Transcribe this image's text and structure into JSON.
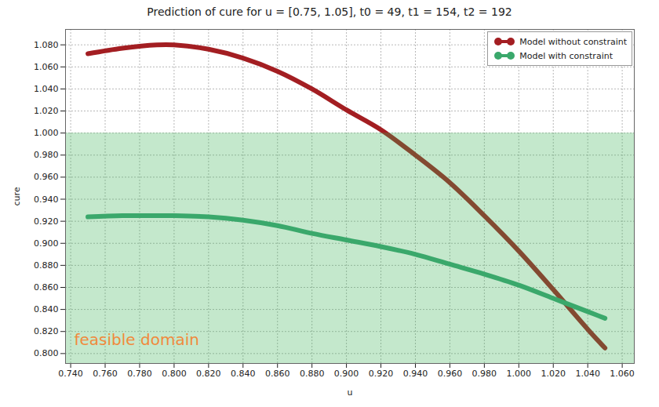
{
  "chart_data": {
    "type": "line",
    "title": "Prediction of cure for u = [0.75, 1.05], t0 = 49, t1 = 154, t2 = 192",
    "x_label": "u",
    "y_label": "cure",
    "x": [
      0.75,
      0.77,
      0.79,
      0.8,
      0.82,
      0.84,
      0.86,
      0.88,
      0.9,
      0.92,
      0.94,
      0.96,
      0.98,
      1.0,
      1.02,
      1.04,
      1.05
    ],
    "series": [
      {
        "name": "Model without constraint",
        "color": "#a31e22",
        "marker": "circle",
        "values": [
          1.072,
          1.077,
          1.08,
          1.08,
          1.076,
          1.068,
          1.056,
          1.04,
          1.021,
          1.003,
          0.98,
          0.955,
          0.925,
          0.893,
          0.858,
          0.822,
          0.805
        ]
      },
      {
        "name": "Model with constraint",
        "color": "#3aa86b",
        "marker": "circle",
        "values": [
          0.924,
          0.925,
          0.925,
          0.925,
          0.924,
          0.921,
          0.916,
          0.909,
          0.903,
          0.897,
          0.89,
          0.881,
          0.872,
          0.862,
          0.85,
          0.838,
          0.832
        ]
      }
    ],
    "feasible_domain": {
      "label": "feasible domain",
      "ymax": 1.0,
      "x": 0.742,
      "y": 0.812,
      "color": "#f08a3c"
    },
    "xlim": [
      0.737,
      1.067
    ],
    "ylim": [
      0.791,
      1.094
    ],
    "xticks": [
      {
        "value": 0.74,
        "label": "0.740"
      },
      {
        "value": 0.76,
        "label": "0.760"
      },
      {
        "value": 0.78,
        "label": "0.780"
      },
      {
        "value": 0.8,
        "label": "0.800"
      },
      {
        "value": 0.82,
        "label": "0.820"
      },
      {
        "value": 0.84,
        "label": "0.840"
      },
      {
        "value": 0.86,
        "label": "0.860"
      },
      {
        "value": 0.88,
        "label": "0.880"
      },
      {
        "value": 0.9,
        "label": "0.900"
      },
      {
        "value": 0.92,
        "label": "0.920"
      },
      {
        "value": 0.94,
        "label": "0.940"
      },
      {
        "value": 0.96,
        "label": "0.960"
      },
      {
        "value": 0.98,
        "label": "0.980"
      },
      {
        "value": 1.0,
        "label": "1.000"
      },
      {
        "value": 1.02,
        "label": "1.020"
      },
      {
        "value": 1.04,
        "label": "1.040"
      },
      {
        "value": 1.06,
        "label": "1.060"
      }
    ],
    "yticks": [
      {
        "value": 0.8,
        "label": "0.800"
      },
      {
        "value": 0.82,
        "label": "0.820"
      },
      {
        "value": 0.84,
        "label": "0.840"
      },
      {
        "value": 0.86,
        "label": "0.860"
      },
      {
        "value": 0.88,
        "label": "0.880"
      },
      {
        "value": 0.9,
        "label": "0.900"
      },
      {
        "value": 0.92,
        "label": "0.920"
      },
      {
        "value": 0.94,
        "label": "0.940"
      },
      {
        "value": 0.96,
        "label": "0.960"
      },
      {
        "value": 0.98,
        "label": "0.980"
      },
      {
        "value": 1.0,
        "label": "1.000"
      },
      {
        "value": 1.02,
        "label": "1.020"
      },
      {
        "value": 1.04,
        "label": "1.040"
      },
      {
        "value": 1.06,
        "label": "1.060"
      },
      {
        "value": 1.08,
        "label": "1.080"
      }
    ],
    "grid": true,
    "legend": "top-right"
  }
}
